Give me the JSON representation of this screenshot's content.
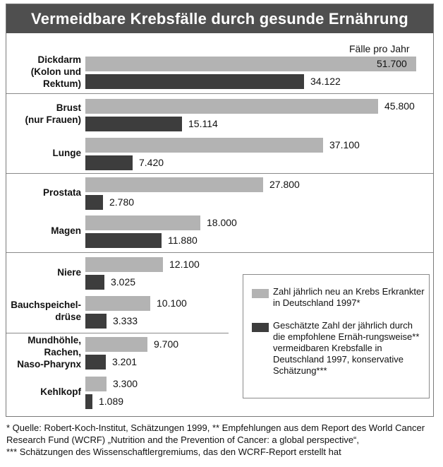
{
  "chart_data": {
    "type": "bar",
    "orientation": "horizontal",
    "title": "Vermeidbare Krebsfälle durch gesunde Ernährung",
    "unit_label": "Fälle pro Jahr",
    "categories": [
      "Dickdarm\n(Kolon und\nRektum)",
      "Brust\n(nur Frauen)",
      "Lunge",
      "Prostata",
      "Magen",
      "Niere",
      "Bauchspeichel-\ndrüse",
      "Mundhöhle,\nRachen,\nNaso-Pharynx",
      "Kehlkopf"
    ],
    "series": [
      {
        "name": "Zahl jährlich neu an Krebs Erkrankter in Deutschland 1997*",
        "color": "#b3b3b3",
        "values": [
          51700,
          45800,
          37100,
          27800,
          18000,
          12100,
          10100,
          9700,
          3300
        ],
        "labels": [
          "51.700",
          "45.800",
          "37.100",
          "27.800",
          "18.000",
          "12.100",
          "10.100",
          "9.700",
          "3.300"
        ]
      },
      {
        "name": "Geschätzte Zahl der jährlich durch die empfohlene Ernährungsweise** vermeidbaren Krebsfalle in Deutschland 1997, konservative Schätzung***",
        "color": "#3d3d3d",
        "values": [
          34122,
          15114,
          7420,
          2780,
          11880,
          3025,
          3333,
          3201,
          1089
        ],
        "labels": [
          "34.122",
          "15.114",
          "7.420",
          "2.780",
          "11.880",
          "3.025",
          "3.333",
          "3.201",
          "1.089"
        ]
      }
    ],
    "xlim": [
      0,
      51700
    ],
    "grid": false,
    "legend_position": "bottom-right",
    "legend": {
      "item1": "Zahl jährlich neu an Krebs Erkrankter in Deutschland 1997*",
      "item2": "Geschätzte Zahl der jährlich durch die empfohlene Ernäh-rungsweise** vermeidbaren Krebsfalle in Deutschland 1997, konservative Schätzung***"
    }
  },
  "footnote": "* Quelle: Robert-Koch-Institut, Schätzungen 1999, ** Empfehlungen aus dem Report des World Cancer Research Fund (WCRF) „Nutrition and the Prevention of Cancer: a global perspective“,\n*** Schätzungen des Wissenschaftlergremiums, das den WCRF-Report erstellt hat",
  "colors": {
    "title_bg": "#4f4f4f",
    "new_cases": "#b3b3b3",
    "avoidable": "#3d3d3d"
  }
}
